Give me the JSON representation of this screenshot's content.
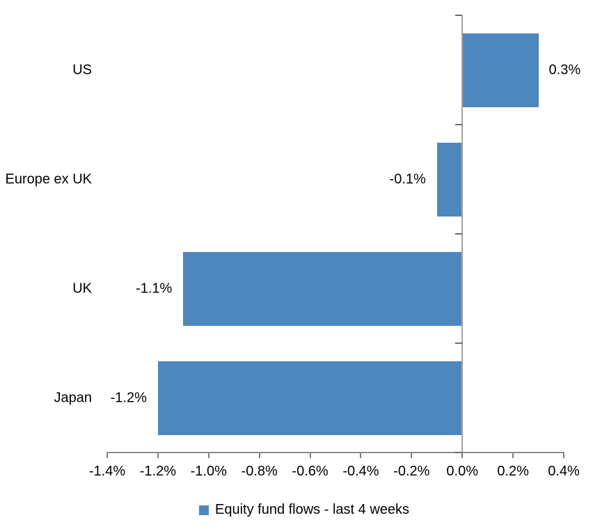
{
  "chart_data": {
    "type": "bar",
    "orientation": "horizontal",
    "categories": [
      "US",
      "Europe ex UK",
      "UK",
      "Japan"
    ],
    "values": [
      0.3,
      -0.1,
      -1.1,
      -1.2
    ],
    "value_labels": [
      "0.3%",
      "-0.1%",
      "-1.1%",
      "-1.2%"
    ],
    "series_name": "Equity fund flows - last 4 weeks",
    "title": "",
    "xlabel": "",
    "ylabel": "",
    "xlim": [
      -1.4,
      0.4
    ],
    "x_ticks": [
      -1.4,
      -1.2,
      -1.0,
      -0.8,
      -0.6,
      -0.4,
      -0.2,
      0.0,
      0.2,
      0.4
    ],
    "x_tick_labels": [
      "-1.4%",
      "-1.2%",
      "-1.0%",
      "-0.8%",
      "-0.6%",
      "-0.4%",
      "-0.2%",
      "0.0%",
      "0.2%",
      "0.4%"
    ],
    "grid": false,
    "legend_position": "bottom",
    "colors": {
      "bar": "#4e87be",
      "axis_line": "#8c8c8c",
      "zero_line": "#a3a3a3",
      "category_tick": "#6e6e6e",
      "x_tick": "#7f7f7f",
      "text": "#000000"
    }
  }
}
